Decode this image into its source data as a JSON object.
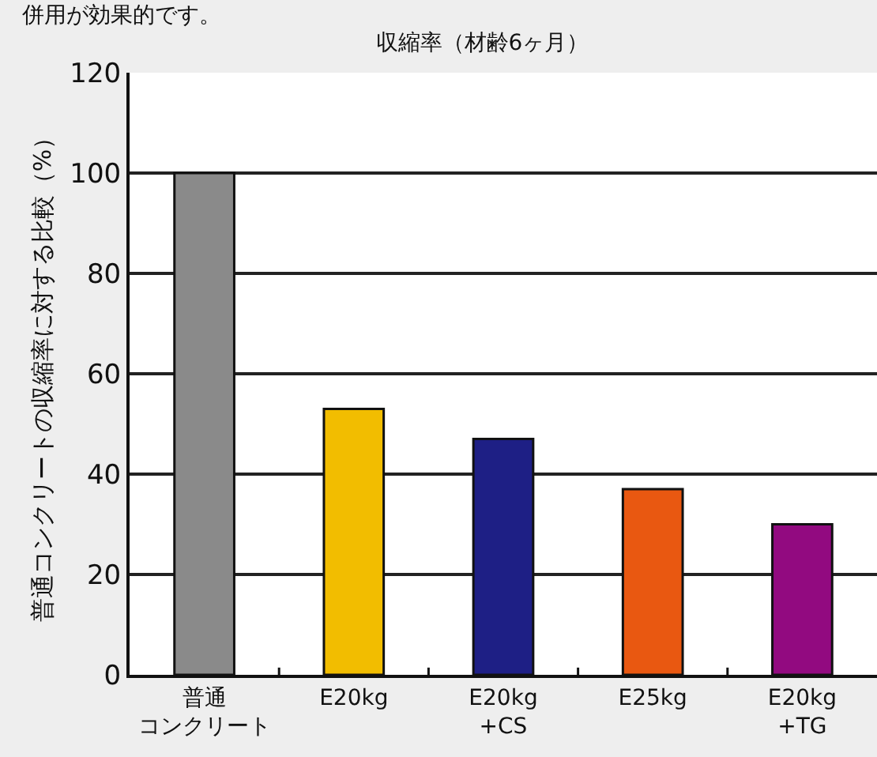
{
  "chart_data": {
    "type": "bar",
    "title": "収縮率（材齢6ヶ月）",
    "ylabel": "普通コンクリートの収縮率に対する比較（%）",
    "annotations": [
      "併用が効果的です。"
    ],
    "categories": [
      "普通コンクリート",
      "E20kg",
      "E20kg\n+CS",
      "E25kg",
      "E20kg\n+TG"
    ],
    "values": [
      100,
      53,
      47,
      37,
      30
    ],
    "colors": [
      "#8a8a8a",
      "#f2bd00",
      "#1e1f85",
      "#e95811",
      "#920a80"
    ],
    "ylim": [
      0,
      120
    ],
    "yticks": [
      0,
      20,
      40,
      60,
      80,
      100,
      120
    ],
    "grid": "y"
  }
}
